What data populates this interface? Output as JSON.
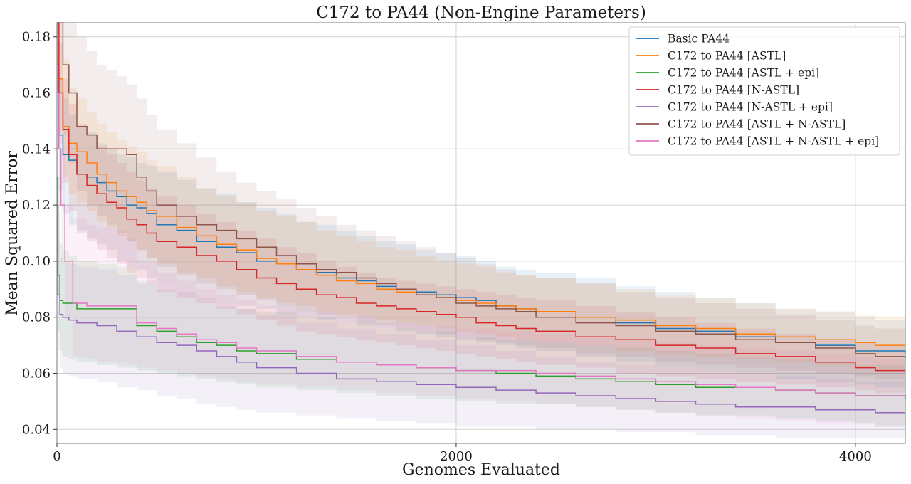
{
  "chart_data": {
    "type": "line",
    "title": "C172 to PA44 (Non-Engine Parameters)",
    "xlabel": "Genomes Evaluated",
    "ylabel": "Mean Squared Error",
    "xlim": [
      0,
      4250
    ],
    "ylim": [
      0.035,
      0.185
    ],
    "xticks": [
      0,
      2000,
      4000
    ],
    "yticks": [
      0.04,
      0.06,
      0.08,
      0.1,
      0.12,
      0.14,
      0.16,
      0.18
    ],
    "xtick_labels": [
      "0",
      "2000",
      "4000"
    ],
    "ytick_labels": [
      "0.04",
      "0.06",
      "0.08",
      "0.10",
      "0.12",
      "0.14",
      "0.16",
      "0.18"
    ],
    "grid": true,
    "legend_position": "top-right",
    "series": [
      {
        "name": "Basic PA44",
        "color": "#1f77b4",
        "x": [
          0,
          10,
          30,
          60,
          100,
          150,
          200,
          250,
          300,
          350,
          400,
          450,
          500,
          600,
          700,
          800,
          900,
          1000,
          1100,
          1200,
          1300,
          1400,
          1500,
          1600,
          1700,
          1800,
          1900,
          2000,
          2100,
          2200,
          2300,
          2400,
          2600,
          2800,
          3000,
          3200,
          3400,
          3600,
          3800,
          4000,
          4100,
          4250
        ],
        "mean": [
          0.17,
          0.145,
          0.138,
          0.136,
          0.131,
          0.13,
          0.128,
          0.125,
          0.123,
          0.12,
          0.119,
          0.117,
          0.113,
          0.111,
          0.107,
          0.105,
          0.103,
          0.1,
          0.099,
          0.097,
          0.096,
          0.094,
          0.093,
          0.091,
          0.09,
          0.089,
          0.088,
          0.087,
          0.086,
          0.084,
          0.083,
          0.082,
          0.08,
          0.078,
          0.076,
          0.075,
          0.073,
          0.071,
          0.07,
          0.068,
          0.068,
          0.067
        ],
        "lower": [
          0.15,
          0.125,
          0.117,
          0.113,
          0.11,
          0.108,
          0.106,
          0.104,
          0.1,
          0.098,
          0.097,
          0.094,
          0.091,
          0.088,
          0.086,
          0.085,
          0.084,
          0.083,
          0.081,
          0.08,
          0.079,
          0.078,
          0.077,
          0.076,
          0.075,
          0.074,
          0.073,
          0.072,
          0.071,
          0.07,
          0.069,
          0.068,
          0.066,
          0.064,
          0.062,
          0.061,
          0.06,
          0.058,
          0.057,
          0.056,
          0.055,
          0.055
        ],
        "upper": [
          0.185,
          0.165,
          0.158,
          0.152,
          0.148,
          0.146,
          0.142,
          0.14,
          0.138,
          0.137,
          0.135,
          0.134,
          0.132,
          0.129,
          0.126,
          0.124,
          0.121,
          0.119,
          0.117,
          0.114,
          0.113,
          0.111,
          0.109,
          0.107,
          0.106,
          0.104,
          0.103,
          0.102,
          0.1,
          0.098,
          0.097,
          0.096,
          0.094,
          0.091,
          0.089,
          0.087,
          0.085,
          0.083,
          0.082,
          0.08,
          0.079,
          0.079
        ]
      },
      {
        "name": "C172 to PA44 [ASTL]",
        "color": "#ff7f0e",
        "x": [
          0,
          10,
          30,
          60,
          100,
          150,
          200,
          250,
          300,
          350,
          400,
          450,
          500,
          600,
          700,
          800,
          900,
          1000,
          1100,
          1200,
          1300,
          1400,
          1500,
          1600,
          1700,
          1800,
          1900,
          2000,
          2100,
          2200,
          2300,
          2400,
          2600,
          2800,
          3000,
          3200,
          3400,
          3600,
          3800,
          4000,
          4100,
          4250
        ],
        "mean": [
          0.185,
          0.165,
          0.148,
          0.142,
          0.139,
          0.135,
          0.131,
          0.128,
          0.125,
          0.123,
          0.121,
          0.118,
          0.116,
          0.112,
          0.109,
          0.106,
          0.104,
          0.101,
          0.099,
          0.097,
          0.095,
          0.093,
          0.092,
          0.09,
          0.089,
          0.088,
          0.087,
          0.086,
          0.085,
          0.084,
          0.083,
          0.082,
          0.08,
          0.079,
          0.077,
          0.076,
          0.074,
          0.073,
          0.072,
          0.071,
          0.07,
          0.07
        ],
        "lower": [
          0.17,
          0.146,
          0.13,
          0.124,
          0.121,
          0.118,
          0.114,
          0.112,
          0.109,
          0.107,
          0.104,
          0.101,
          0.099,
          0.096,
          0.094,
          0.091,
          0.089,
          0.087,
          0.085,
          0.084,
          0.082,
          0.081,
          0.08,
          0.079,
          0.078,
          0.077,
          0.076,
          0.075,
          0.074,
          0.073,
          0.072,
          0.071,
          0.07,
          0.068,
          0.067,
          0.066,
          0.065,
          0.064,
          0.063,
          0.062,
          0.061,
          0.061
        ],
        "upper": [
          0.185,
          0.185,
          0.172,
          0.162,
          0.158,
          0.153,
          0.149,
          0.146,
          0.143,
          0.141,
          0.139,
          0.136,
          0.134,
          0.13,
          0.126,
          0.123,
          0.121,
          0.118,
          0.116,
          0.114,
          0.111,
          0.109,
          0.107,
          0.105,
          0.104,
          0.102,
          0.1,
          0.099,
          0.098,
          0.096,
          0.095,
          0.094,
          0.092,
          0.09,
          0.088,
          0.087,
          0.085,
          0.083,
          0.082,
          0.081,
          0.08,
          0.08
        ]
      },
      {
        "name": "C172 to PA44 [ASTL + epi]",
        "color": "#2ca02c",
        "x": [
          0,
          5,
          15,
          30,
          60,
          100,
          200,
          300,
          350,
          400,
          500,
          600,
          700,
          800,
          900,
          1000,
          1200,
          1400,
          1600,
          1800,
          2000,
          2200,
          2400,
          2600,
          2800,
          3000,
          3200,
          3400,
          3600,
          3800,
          4000,
          4100,
          4250
        ],
        "mean": [
          0.13,
          0.095,
          0.086,
          0.085,
          0.085,
          0.083,
          0.083,
          0.083,
          0.083,
          0.077,
          0.075,
          0.073,
          0.071,
          0.07,
          0.068,
          0.067,
          0.065,
          0.064,
          0.063,
          0.062,
          0.061,
          0.06,
          0.059,
          0.058,
          0.057,
          0.056,
          0.055,
          0.055,
          0.054,
          0.053,
          0.052,
          0.052,
          0.051
        ],
        "lower": [
          0.11,
          0.075,
          0.068,
          0.066,
          0.065,
          0.064,
          0.063,
          0.062,
          0.062,
          0.061,
          0.06,
          0.059,
          0.058,
          0.057,
          0.056,
          0.055,
          0.054,
          0.053,
          0.052,
          0.051,
          0.05,
          0.049,
          0.049,
          0.048,
          0.047,
          0.046,
          0.045,
          0.045,
          0.044,
          0.043,
          0.042,
          0.041,
          0.041
        ],
        "upper": [
          0.15,
          0.12,
          0.106,
          0.104,
          0.102,
          0.1,
          0.099,
          0.098,
          0.098,
          0.092,
          0.09,
          0.088,
          0.086,
          0.084,
          0.083,
          0.082,
          0.08,
          0.078,
          0.076,
          0.075,
          0.073,
          0.072,
          0.071,
          0.07,
          0.069,
          0.068,
          0.067,
          0.066,
          0.065,
          0.064,
          0.063,
          0.063,
          0.062
        ]
      },
      {
        "name": "C172 to PA44 [N-ASTL]",
        "color": "#d62728",
        "x": [
          0,
          10,
          30,
          60,
          100,
          150,
          200,
          250,
          300,
          350,
          400,
          450,
          500,
          600,
          700,
          800,
          900,
          1000,
          1100,
          1200,
          1300,
          1400,
          1500,
          1600,
          1700,
          1800,
          1900,
          2000,
          2100,
          2200,
          2300,
          2400,
          2600,
          2800,
          3000,
          3200,
          3400,
          3600,
          3800,
          4000,
          4100,
          4250
        ],
        "mean": [
          0.185,
          0.16,
          0.147,
          0.138,
          0.131,
          0.127,
          0.124,
          0.121,
          0.119,
          0.115,
          0.113,
          0.11,
          0.107,
          0.105,
          0.102,
          0.1,
          0.097,
          0.094,
          0.092,
          0.09,
          0.088,
          0.087,
          0.085,
          0.084,
          0.083,
          0.082,
          0.081,
          0.08,
          0.078,
          0.077,
          0.076,
          0.075,
          0.073,
          0.072,
          0.07,
          0.069,
          0.067,
          0.066,
          0.064,
          0.062,
          0.061,
          0.061
        ],
        "lower": [
          0.17,
          0.142,
          0.128,
          0.118,
          0.111,
          0.107,
          0.104,
          0.101,
          0.099,
          0.096,
          0.094,
          0.092,
          0.089,
          0.087,
          0.085,
          0.083,
          0.081,
          0.079,
          0.077,
          0.075,
          0.074,
          0.073,
          0.072,
          0.071,
          0.07,
          0.069,
          0.068,
          0.067,
          0.066,
          0.065,
          0.064,
          0.063,
          0.062,
          0.06,
          0.059,
          0.058,
          0.057,
          0.056,
          0.055,
          0.054,
          0.053,
          0.053
        ],
        "upper": [
          0.185,
          0.178,
          0.165,
          0.156,
          0.149,
          0.145,
          0.141,
          0.138,
          0.135,
          0.132,
          0.129,
          0.126,
          0.123,
          0.12,
          0.117,
          0.114,
          0.111,
          0.108,
          0.105,
          0.103,
          0.1,
          0.098,
          0.096,
          0.094,
          0.093,
          0.092,
          0.091,
          0.09,
          0.089,
          0.088,
          0.087,
          0.086,
          0.084,
          0.082,
          0.08,
          0.078,
          0.076,
          0.074,
          0.072,
          0.071,
          0.07,
          0.07
        ]
      },
      {
        "name": "C172 to PA44 [N-ASTL + epi]",
        "color": "#9467bd",
        "x": [
          0,
          5,
          15,
          30,
          60,
          100,
          200,
          300,
          400,
          500,
          600,
          700,
          800,
          900,
          1000,
          1200,
          1400,
          1600,
          1800,
          2000,
          2200,
          2400,
          2600,
          2800,
          3000,
          3200,
          3400,
          3600,
          3800,
          4000,
          4100,
          4250
        ],
        "mean": [
          0.12,
          0.088,
          0.081,
          0.08,
          0.079,
          0.078,
          0.077,
          0.075,
          0.073,
          0.071,
          0.07,
          0.068,
          0.066,
          0.064,
          0.062,
          0.06,
          0.058,
          0.057,
          0.056,
          0.055,
          0.054,
          0.053,
          0.052,
          0.051,
          0.05,
          0.049,
          0.048,
          0.048,
          0.047,
          0.047,
          0.046,
          0.046
        ],
        "lower": [
          0.1,
          0.068,
          0.062,
          0.06,
          0.059,
          0.058,
          0.057,
          0.055,
          0.054,
          0.052,
          0.051,
          0.049,
          0.048,
          0.047,
          0.046,
          0.045,
          0.044,
          0.043,
          0.042,
          0.041,
          0.041,
          0.04,
          0.04,
          0.039,
          0.039,
          0.038,
          0.038,
          0.037,
          0.037,
          0.037,
          0.037,
          0.037
        ],
        "upper": [
          0.14,
          0.108,
          0.101,
          0.1,
          0.099,
          0.098,
          0.097,
          0.095,
          0.093,
          0.091,
          0.089,
          0.087,
          0.085,
          0.083,
          0.081,
          0.078,
          0.076,
          0.074,
          0.072,
          0.07,
          0.068,
          0.066,
          0.064,
          0.063,
          0.062,
          0.061,
          0.06,
          0.059,
          0.058,
          0.057,
          0.057,
          0.057
        ]
      },
      {
        "name": "C172 to PA44 [ASTL + N-ASTL]",
        "color": "#8c564b",
        "x": [
          0,
          10,
          30,
          60,
          100,
          150,
          200,
          250,
          300,
          350,
          400,
          450,
          500,
          600,
          700,
          800,
          900,
          1000,
          1100,
          1200,
          1300,
          1400,
          1500,
          1600,
          1700,
          1800,
          1900,
          2000,
          2100,
          2200,
          2300,
          2400,
          2600,
          2800,
          3000,
          3200,
          3400,
          3600,
          3800,
          4000,
          4100,
          4250
        ],
        "mean": [
          0.185,
          0.185,
          0.17,
          0.16,
          0.148,
          0.145,
          0.14,
          0.14,
          0.14,
          0.138,
          0.13,
          0.125,
          0.12,
          0.116,
          0.113,
          0.111,
          0.108,
          0.105,
          0.102,
          0.099,
          0.097,
          0.096,
          0.094,
          0.092,
          0.09,
          0.088,
          0.087,
          0.085,
          0.084,
          0.083,
          0.082,
          0.08,
          0.078,
          0.077,
          0.075,
          0.074,
          0.072,
          0.071,
          0.069,
          0.067,
          0.066,
          0.065
        ],
        "lower": [
          0.17,
          0.16,
          0.145,
          0.135,
          0.125,
          0.12,
          0.116,
          0.113,
          0.11,
          0.107,
          0.104,
          0.101,
          0.098,
          0.095,
          0.092,
          0.09,
          0.088,
          0.086,
          0.084,
          0.082,
          0.081,
          0.08,
          0.078,
          0.077,
          0.076,
          0.075,
          0.074,
          0.073,
          0.072,
          0.071,
          0.07,
          0.069,
          0.067,
          0.066,
          0.064,
          0.063,
          0.062,
          0.061,
          0.06,
          0.059,
          0.058,
          0.058
        ],
        "upper": [
          0.185,
          0.185,
          0.185,
          0.185,
          0.18,
          0.175,
          0.17,
          0.168,
          0.166,
          0.163,
          0.158,
          0.152,
          0.147,
          0.142,
          0.137,
          0.132,
          0.128,
          0.125,
          0.122,
          0.119,
          0.116,
          0.113,
          0.111,
          0.109,
          0.107,
          0.105,
          0.103,
          0.101,
          0.099,
          0.097,
          0.095,
          0.094,
          0.092,
          0.089,
          0.087,
          0.085,
          0.083,
          0.081,
          0.079,
          0.077,
          0.076,
          0.075
        ]
      },
      {
        "name": "C172 to PA44 [ASTL + N-ASTL + epi]",
        "color": "#e377c2",
        "x": [
          0,
          5,
          10,
          20,
          40,
          80,
          150,
          200,
          300,
          350,
          400,
          500,
          600,
          700,
          800,
          900,
          1000,
          1200,
          1400,
          1600,
          1800,
          2000,
          2200,
          2400,
          2600,
          2800,
          3000,
          3200,
          3400,
          3600,
          3800,
          4000,
          4100,
          4250
        ],
        "mean": [
          0.185,
          0.16,
          0.14,
          0.12,
          0.1,
          0.085,
          0.084,
          0.084,
          0.084,
          0.084,
          0.078,
          0.076,
          0.074,
          0.072,
          0.071,
          0.069,
          0.068,
          0.066,
          0.064,
          0.063,
          0.062,
          0.061,
          0.061,
          0.06,
          0.059,
          0.058,
          0.057,
          0.056,
          0.055,
          0.054,
          0.053,
          0.052,
          0.052,
          0.051
        ],
        "lower": [
          0.16,
          0.14,
          0.12,
          0.1,
          0.08,
          0.066,
          0.065,
          0.064,
          0.064,
          0.063,
          0.062,
          0.061,
          0.06,
          0.059,
          0.058,
          0.057,
          0.056,
          0.055,
          0.054,
          0.053,
          0.052,
          0.051,
          0.05,
          0.049,
          0.048,
          0.047,
          0.046,
          0.045,
          0.044,
          0.043,
          0.042,
          0.042,
          0.041,
          0.041
        ],
        "upper": [
          0.185,
          0.18,
          0.16,
          0.14,
          0.12,
          0.115,
          0.113,
          0.112,
          0.111,
          0.108,
          0.1,
          0.096,
          0.093,
          0.09,
          0.088,
          0.086,
          0.084,
          0.082,
          0.08,
          0.078,
          0.077,
          0.076,
          0.075,
          0.074,
          0.073,
          0.072,
          0.071,
          0.07,
          0.069,
          0.068,
          0.067,
          0.066,
          0.065,
          0.065
        ]
      }
    ]
  }
}
